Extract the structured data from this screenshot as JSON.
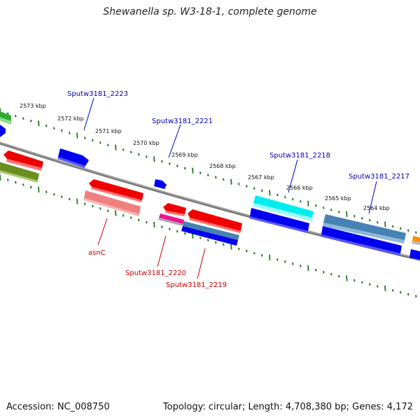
{
  "title": "Shewanella sp. W3-18-1, complete genome",
  "footer": {
    "accession": "Accession: NC_008750",
    "topology": "Topology: circular; Length: 4,708,380 bp; Genes: 4,172"
  },
  "colors": {
    "backbone": "#7a7a7a",
    "tick": "#1f7a1f",
    "label_top": "#0000b4",
    "label_bottom": "#c80000"
  },
  "kbp_labels": [
    "2573 kbp",
    "2572 kbp",
    "2571 kbp",
    "2570 kbp",
    "2569 kbp",
    "2568 kbp",
    "2567 kbp",
    "2566 kbp",
    "2565 kbp",
    "2564 kbp"
  ],
  "gene_labels_top": [
    "Sputw3181_2223",
    "Sputw3181_2221",
    "Sputw3181_2218",
    "Sputw3181_2217"
  ],
  "gene_labels_bottom": [
    "asnC",
    "Sputw3181_2220",
    "Sputw3181_2219"
  ]
}
